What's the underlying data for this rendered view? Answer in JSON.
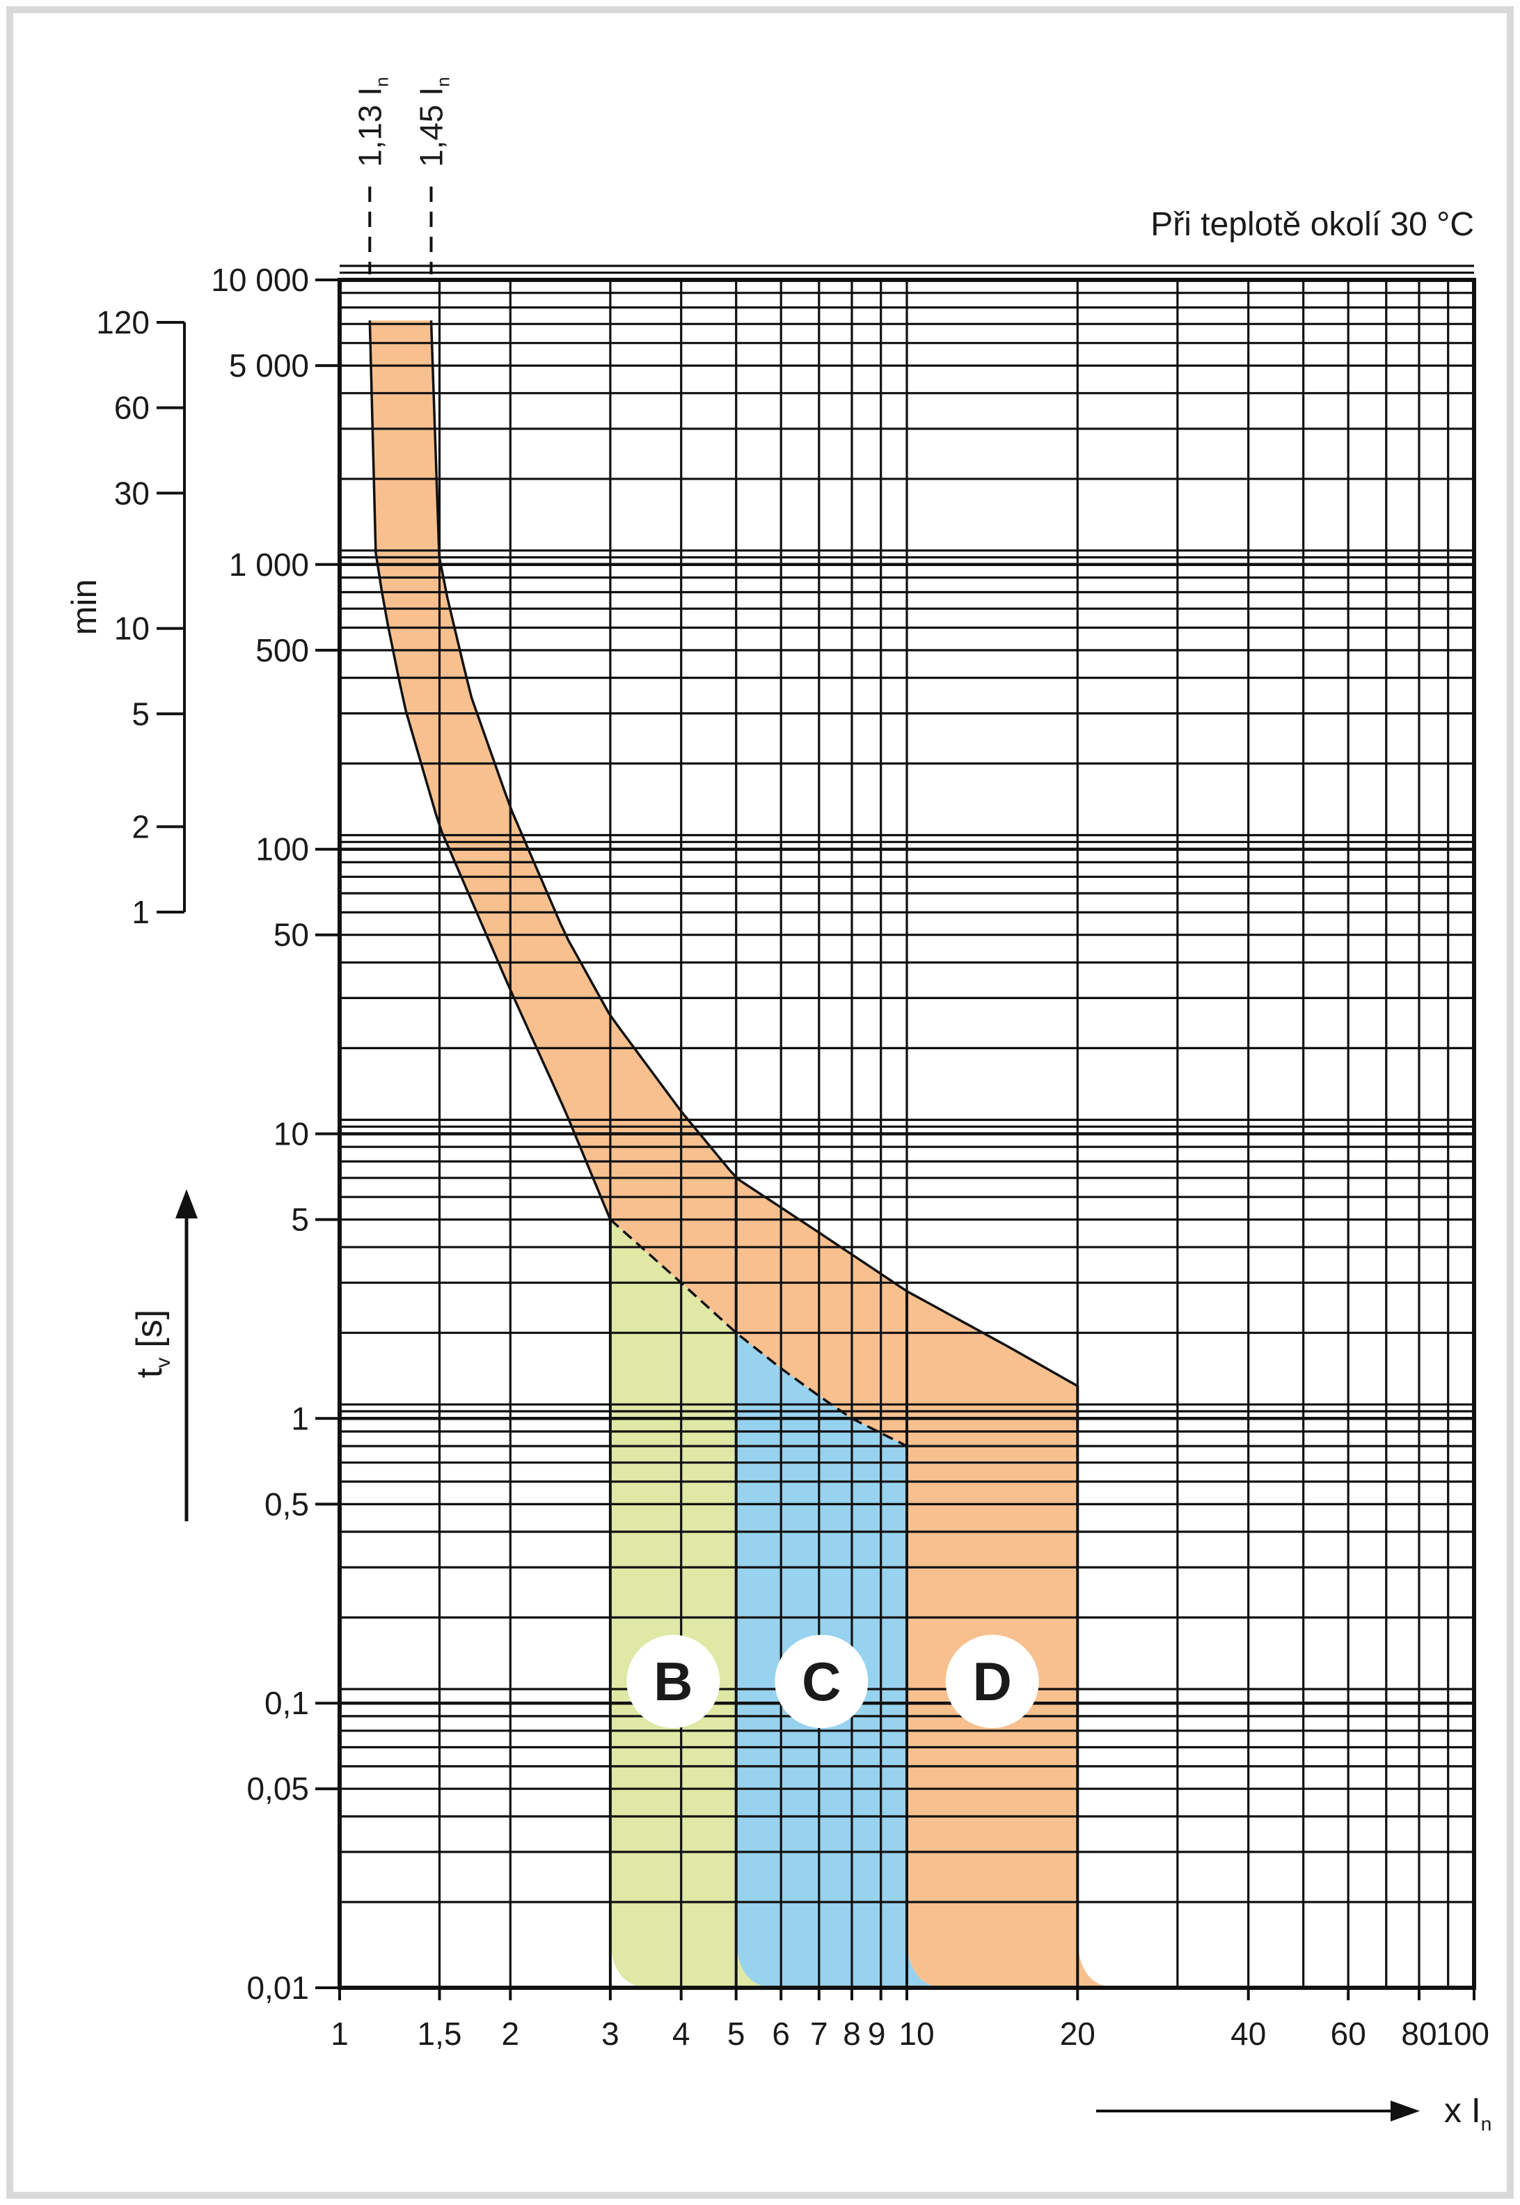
{
  "chart_data": {
    "type": "area",
    "title": "",
    "annotation": "Při teplotě okolí 30 °C",
    "xlabel": "x I",
    "xlabel_sub": "n",
    "ylabel": "t",
    "ylabel_sub": "v",
    "ylabel_unit": "[s]",
    "ylabel_min": "min",
    "x_scale": "log",
    "y_scale": "log",
    "xlim": [
      1,
      100
    ],
    "ylim": [
      0.01,
      10000
    ],
    "grid": true,
    "x_ticks": [
      {
        "v": 1,
        "label": "1"
      },
      {
        "v": 1.5,
        "label": "1,5"
      },
      {
        "v": 2,
        "label": "2"
      },
      {
        "v": 3,
        "label": "3"
      },
      {
        "v": 4,
        "label": "4"
      },
      {
        "v": 5,
        "label": "5"
      },
      {
        "v": 6,
        "label": "6"
      },
      {
        "v": 7,
        "label": "7"
      },
      {
        "v": 8,
        "label": "8"
      },
      {
        "v": 9,
        "label": "9"
      },
      {
        "v": 10,
        "label": "10"
      },
      {
        "v": 20,
        "label": "20"
      },
      {
        "v": 40,
        "label": "40"
      },
      {
        "v": 60,
        "label": "60"
      },
      {
        "v": 80,
        "label": "80"
      },
      {
        "v": 100,
        "label": "100"
      }
    ],
    "y_ticks": [
      {
        "v": 10000,
        "label": "10 000"
      },
      {
        "v": 5000,
        "label": "5 000"
      },
      {
        "v": 1000,
        "label": "1 000"
      },
      {
        "v": 500,
        "label": "500"
      },
      {
        "v": 100,
        "label": "100"
      },
      {
        "v": 50,
        "label": "50"
      },
      {
        "v": 10,
        "label": "10"
      },
      {
        "v": 5,
        "label": "5"
      },
      {
        "v": 1,
        "label": "1"
      },
      {
        "v": 0.5,
        "label": "0,5"
      },
      {
        "v": 0.1,
        "label": "0,1"
      },
      {
        "v": 0.05,
        "label": "0,05"
      },
      {
        "v": 0.01,
        "label": "0,01"
      }
    ],
    "min_ticks": [
      {
        "v": 120,
        "label": "120"
      },
      {
        "v": 60,
        "label": "60"
      },
      {
        "v": 30,
        "label": "30"
      },
      {
        "v": 10,
        "label": "10"
      },
      {
        "v": 5,
        "label": "5"
      },
      {
        "v": 2,
        "label": "2"
      },
      {
        "v": 1,
        "label": "1"
      }
    ],
    "markers": [
      {
        "x": 1.13,
        "label": "1,13 I",
        "sub": "n"
      },
      {
        "x": 1.45,
        "label": "1,45 I",
        "sub": "n"
      }
    ],
    "thermal_band": {
      "lower": [
        [
          1.13,
          7200
        ],
        [
          1.15,
          1200
        ],
        [
          1.2,
          700
        ],
        [
          1.3,
          320
        ],
        [
          1.5,
          120
        ],
        [
          2,
          32
        ],
        [
          2.5,
          12
        ],
        [
          3,
          5
        ],
        [
          4,
          3
        ],
        [
          5,
          2
        ],
        [
          6,
          1.5
        ],
        [
          7,
          1.2
        ],
        [
          8,
          1
        ],
        [
          10,
          0.8
        ]
      ],
      "upper": [
        [
          1.45,
          7200
        ],
        [
          1.5,
          1000
        ],
        [
          1.7,
          350
        ],
        [
          2,
          140
        ],
        [
          2.5,
          50
        ],
        [
          3,
          26
        ],
        [
          4,
          12
        ],
        [
          5,
          7
        ],
        [
          7,
          4.5
        ],
        [
          10,
          2.8
        ],
        [
          15,
          1.8
        ],
        [
          20,
          1.3
        ]
      ]
    },
    "series": [
      {
        "name": "B",
        "x_from": 3,
        "x_to": 5,
        "color": "#dfe8a4"
      },
      {
        "name": "C",
        "x_from": 5,
        "x_to": 10,
        "color": "#97d2ee"
      },
      {
        "name": "D",
        "x_from": 10,
        "x_to": 20,
        "color": "#f8c08e"
      }
    ],
    "colors": {
      "band": "#f8c08e",
      "frame": "#dcdcdc"
    }
  }
}
